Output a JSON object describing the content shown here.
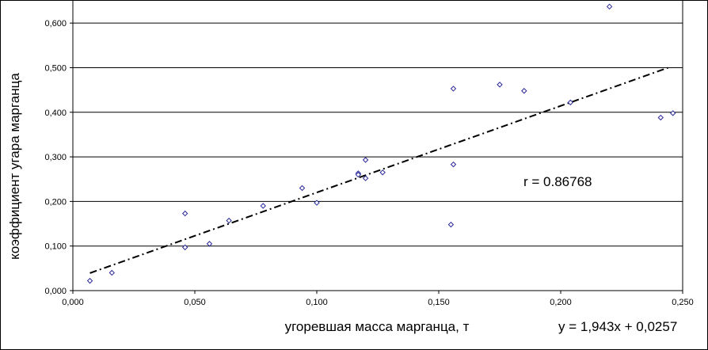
{
  "chart_data": {
    "type": "scatter",
    "title": "",
    "xlabel": "угоревшая масса марганца, т",
    "ylabel": "коэффициент угара марганца",
    "xlim": [
      0,
      0.25
    ],
    "ylim": [
      0,
      0.65
    ],
    "x_ticks": [
      "0,000",
      "0,050",
      "0,100",
      "0,150",
      "0,200",
      "0,250"
    ],
    "y_ticks": [
      "0,000",
      "0,100",
      "0,200",
      "0,300",
      "0,400",
      "0,500",
      "0,600"
    ],
    "grid": "horizontal",
    "legend": "none",
    "colors": {
      "marker": "#2b2b9a",
      "trendline": "#000000",
      "grid": "#000000"
    },
    "points": [
      {
        "x": 0.007,
        "y": 0.022
      },
      {
        "x": 0.016,
        "y": 0.04
      },
      {
        "x": 0.046,
        "y": 0.173
      },
      {
        "x": 0.046,
        "y": 0.097
      },
      {
        "x": 0.056,
        "y": 0.105
      },
      {
        "x": 0.064,
        "y": 0.157
      },
      {
        "x": 0.078,
        "y": 0.19
      },
      {
        "x": 0.094,
        "y": 0.23
      },
      {
        "x": 0.1,
        "y": 0.197
      },
      {
        "x": 0.117,
        "y": 0.263
      },
      {
        "x": 0.117,
        "y": 0.26
      },
      {
        "x": 0.12,
        "y": 0.293
      },
      {
        "x": 0.12,
        "y": 0.252
      },
      {
        "x": 0.127,
        "y": 0.265
      },
      {
        "x": 0.155,
        "y": 0.148
      },
      {
        "x": 0.156,
        "y": 0.453
      },
      {
        "x": 0.156,
        "y": 0.283
      },
      {
        "x": 0.175,
        "y": 0.462
      },
      {
        "x": 0.185,
        "y": 0.448
      },
      {
        "x": 0.204,
        "y": 0.422
      },
      {
        "x": 0.22,
        "y": 0.637
      },
      {
        "x": 0.241,
        "y": 0.388
      },
      {
        "x": 0.246,
        "y": 0.398
      }
    ],
    "trendline": {
      "slope": 1.943,
      "intercept": 0.0257,
      "x_range": [
        0.007,
        0.244
      ]
    },
    "annotations": {
      "r_label": "r = 0.86768",
      "equation": "y = 1,943x + 0,0257"
    }
  }
}
